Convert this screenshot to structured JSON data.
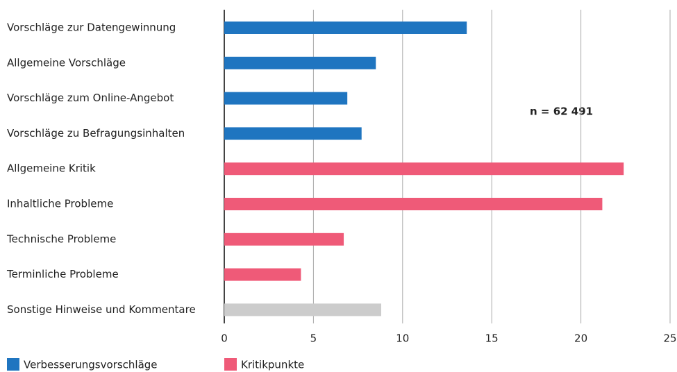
{
  "chart_data": {
    "type": "bar",
    "orientation": "horizontal",
    "categories": [
      "Vorschläge zur Datengewinnung",
      "Allgemeine Vorschläge",
      "Vorschläge zum Online-Angebot",
      "Vorschläge zu Befragungsinhalten",
      "Allgemeine Kritik",
      "Inhaltliche Probleme",
      "Technische Probleme",
      "Terminliche Probleme",
      "Sonstige Hinweise und Kommentare"
    ],
    "values": [
      13.6,
      8.5,
      6.9,
      7.7,
      22.4,
      21.2,
      6.7,
      4.3,
      8.8
    ],
    "colors": [
      "#1f75c0",
      "#1f75c0",
      "#1f75c0",
      "#1f75c0",
      "#ef5a78",
      "#ef5a78",
      "#ef5a78",
      "#ef5a78",
      "#cccccc"
    ],
    "legend": [
      {
        "name": "Verbesserungsvorschläge",
        "color": "#1f75c0"
      },
      {
        "name": "Kritikpunkte",
        "color": "#ef5a78"
      }
    ],
    "annotation": "n = 62 491",
    "xlim": [
      0,
      25
    ],
    "xticks": [
      0,
      5,
      10,
      15,
      20,
      25
    ],
    "grid": true
  }
}
